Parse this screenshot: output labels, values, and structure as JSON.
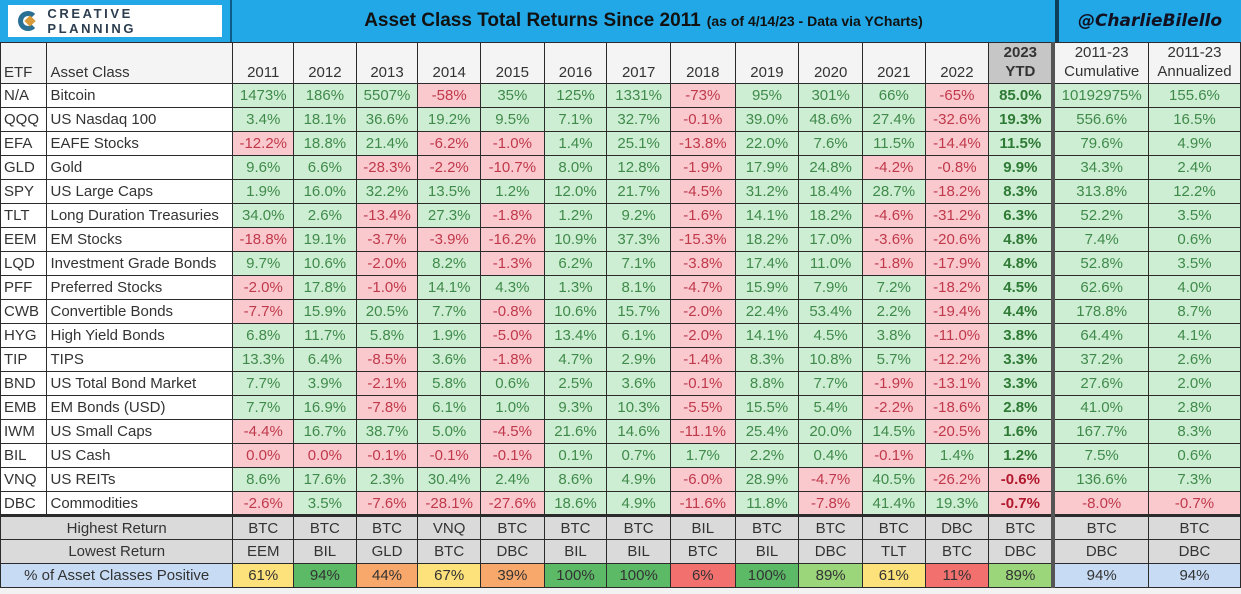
{
  "header": {
    "logo_text": "CREATIVE PLANNING",
    "title": "Asset Class Total Returns Since 2011",
    "subtitle": "(as of 4/14/23 - Data via YCharts)",
    "handle": "@CharlieBilello"
  },
  "columns": {
    "etf": "ETF",
    "asset_class": "Asset Class",
    "years": [
      "2011",
      "2012",
      "2013",
      "2014",
      "2015",
      "2016",
      "2017",
      "2018",
      "2019",
      "2020",
      "2021",
      "2022"
    ],
    "ytd_line1": "2023",
    "ytd_line2": "YTD",
    "cum_line1": "2011-23",
    "cum_line2": "Cumulative",
    "ann_line1": "2011-23",
    "ann_line2": "Annualized"
  },
  "colors": {
    "banner_blue": "#22a8e6",
    "positive_bg": "#cdeed3",
    "positive_text": "#3f8a4a",
    "negative_bg": "#f9c9ce",
    "negative_text": "#c0394a",
    "pct_green_dark": "#5cba67",
    "pct_green_light": "#9bd67a",
    "pct_yellow": "#fde17a",
    "pct_orange": "#f8a86a",
    "pct_red": "#f2716f",
    "pct_blue": "#c7dcf4"
  },
  "rows": [
    {
      "etf": "N/A",
      "name": "Bitcoin",
      "values": [
        "1473%",
        "186%",
        "5507%",
        "-58%",
        "35%",
        "125%",
        "1331%",
        "-73%",
        "95%",
        "301%",
        "66%",
        "-65%"
      ],
      "ytd": "85.0%",
      "cum": "10192975%",
      "ann": "155.6%"
    },
    {
      "etf": "QQQ",
      "name": "US Nasdaq 100",
      "values": [
        "3.4%",
        "18.1%",
        "36.6%",
        "19.2%",
        "9.5%",
        "7.1%",
        "32.7%",
        "-0.1%",
        "39.0%",
        "48.6%",
        "27.4%",
        "-32.6%"
      ],
      "ytd": "19.3%",
      "cum": "556.6%",
      "ann": "16.5%"
    },
    {
      "etf": "EFA",
      "name": "EAFE Stocks",
      "values": [
        "-12.2%",
        "18.8%",
        "21.4%",
        "-6.2%",
        "-1.0%",
        "1.4%",
        "25.1%",
        "-13.8%",
        "22.0%",
        "7.6%",
        "11.5%",
        "-14.4%"
      ],
      "ytd": "11.5%",
      "cum": "79.6%",
      "ann": "4.9%"
    },
    {
      "etf": "GLD",
      "name": "Gold",
      "values": [
        "9.6%",
        "6.6%",
        "-28.3%",
        "-2.2%",
        "-10.7%",
        "8.0%",
        "12.8%",
        "-1.9%",
        "17.9%",
        "24.8%",
        "-4.2%",
        "-0.8%"
      ],
      "ytd": "9.9%",
      "cum": "34.3%",
      "ann": "2.4%"
    },
    {
      "etf": "SPY",
      "name": "US Large Caps",
      "values": [
        "1.9%",
        "16.0%",
        "32.2%",
        "13.5%",
        "1.2%",
        "12.0%",
        "21.7%",
        "-4.5%",
        "31.2%",
        "18.4%",
        "28.7%",
        "-18.2%"
      ],
      "ytd": "8.3%",
      "cum": "313.8%",
      "ann": "12.2%"
    },
    {
      "etf": "TLT",
      "name": "Long Duration Treasuries",
      "values": [
        "34.0%",
        "2.6%",
        "-13.4%",
        "27.3%",
        "-1.8%",
        "1.2%",
        "9.2%",
        "-1.6%",
        "14.1%",
        "18.2%",
        "-4.6%",
        "-31.2%"
      ],
      "ytd": "6.3%",
      "cum": "52.2%",
      "ann": "3.5%"
    },
    {
      "etf": "EEM",
      "name": "EM Stocks",
      "values": [
        "-18.8%",
        "19.1%",
        "-3.7%",
        "-3.9%",
        "-16.2%",
        "10.9%",
        "37.3%",
        "-15.3%",
        "18.2%",
        "17.0%",
        "-3.6%",
        "-20.6%"
      ],
      "ytd": "4.8%",
      "cum": "7.4%",
      "ann": "0.6%"
    },
    {
      "etf": "LQD",
      "name": "Investment Grade Bonds",
      "values": [
        "9.7%",
        "10.6%",
        "-2.0%",
        "8.2%",
        "-1.3%",
        "6.2%",
        "7.1%",
        "-3.8%",
        "17.4%",
        "11.0%",
        "-1.8%",
        "-17.9%"
      ],
      "ytd": "4.8%",
      "cum": "52.8%",
      "ann": "3.5%"
    },
    {
      "etf": "PFF",
      "name": "Preferred Stocks",
      "values": [
        "-2.0%",
        "17.8%",
        "-1.0%",
        "14.1%",
        "4.3%",
        "1.3%",
        "8.1%",
        "-4.7%",
        "15.9%",
        "7.9%",
        "7.2%",
        "-18.2%"
      ],
      "ytd": "4.5%",
      "cum": "62.6%",
      "ann": "4.0%"
    },
    {
      "etf": "CWB",
      "name": "Convertible Bonds",
      "values": [
        "-7.7%",
        "15.9%",
        "20.5%",
        "7.7%",
        "-0.8%",
        "10.6%",
        "15.7%",
        "-2.0%",
        "22.4%",
        "53.4%",
        "2.2%",
        "-19.4%"
      ],
      "ytd": "4.4%",
      "cum": "178.8%",
      "ann": "8.7%"
    },
    {
      "etf": "HYG",
      "name": "High Yield Bonds",
      "values": [
        "6.8%",
        "11.7%",
        "5.8%",
        "1.9%",
        "-5.0%",
        "13.4%",
        "6.1%",
        "-2.0%",
        "14.1%",
        "4.5%",
        "3.8%",
        "-11.0%"
      ],
      "ytd": "3.8%",
      "cum": "64.4%",
      "ann": "4.1%"
    },
    {
      "etf": "TIP",
      "name": "TIPS",
      "values": [
        "13.3%",
        "6.4%",
        "-8.5%",
        "3.6%",
        "-1.8%",
        "4.7%",
        "2.9%",
        "-1.4%",
        "8.3%",
        "10.8%",
        "5.7%",
        "-12.2%"
      ],
      "ytd": "3.3%",
      "cum": "37.2%",
      "ann": "2.6%"
    },
    {
      "etf": "BND",
      "name": "US Total Bond Market",
      "values": [
        "7.7%",
        "3.9%",
        "-2.1%",
        "5.8%",
        "0.6%",
        "2.5%",
        "3.6%",
        "-0.1%",
        "8.8%",
        "7.7%",
        "-1.9%",
        "-13.1%"
      ],
      "ytd": "3.3%",
      "cum": "27.6%",
      "ann": "2.0%"
    },
    {
      "etf": "EMB",
      "name": "EM Bonds (USD)",
      "values": [
        "7.7%",
        "16.9%",
        "-7.8%",
        "6.1%",
        "1.0%",
        "9.3%",
        "10.3%",
        "-5.5%",
        "15.5%",
        "5.4%",
        "-2.2%",
        "-18.6%"
      ],
      "ytd": "2.8%",
      "cum": "41.0%",
      "ann": "2.8%"
    },
    {
      "etf": "IWM",
      "name": "US Small Caps",
      "values": [
        "-4.4%",
        "16.7%",
        "38.7%",
        "5.0%",
        "-4.5%",
        "21.6%",
        "14.6%",
        "-11.1%",
        "25.4%",
        "20.0%",
        "14.5%",
        "-20.5%"
      ],
      "ytd": "1.6%",
      "cum": "167.7%",
      "ann": "8.3%"
    },
    {
      "etf": "BIL",
      "name": "US Cash",
      "values": [
        "0.0%",
        "0.0%",
        "-0.1%",
        "-0.1%",
        "-0.1%",
        "0.1%",
        "0.7%",
        "1.7%",
        "2.2%",
        "0.4%",
        "-0.1%",
        "1.4%"
      ],
      "ytd": "1.2%",
      "cum": "7.5%",
      "ann": "0.6%"
    },
    {
      "etf": "VNQ",
      "name": "US REITs",
      "values": [
        "8.6%",
        "17.6%",
        "2.3%",
        "30.4%",
        "2.4%",
        "8.6%",
        "4.9%",
        "-6.0%",
        "28.9%",
        "-4.7%",
        "40.5%",
        "-26.2%"
      ],
      "ytd": "-0.6%",
      "cum": "136.6%",
      "ann": "7.3%"
    },
    {
      "etf": "DBC",
      "name": "Commodities",
      "values": [
        "-2.6%",
        "3.5%",
        "-7.6%",
        "-28.1%",
        "-27.6%",
        "18.6%",
        "4.9%",
        "-11.6%",
        "11.8%",
        "-7.8%",
        "41.4%",
        "19.3%"
      ],
      "ytd": "-0.7%",
      "cum": "-8.0%",
      "ann": "-0.7%"
    }
  ],
  "summary": {
    "highest": {
      "label": "Highest Return",
      "values": [
        "BTC",
        "BTC",
        "BTC",
        "VNQ",
        "BTC",
        "BTC",
        "BTC",
        "BIL",
        "BTC",
        "BTC",
        "BTC",
        "DBC",
        "BTC",
        "BTC",
        "BTC"
      ]
    },
    "lowest": {
      "label": "Lowest Return",
      "values": [
        "EEM",
        "BIL",
        "GLD",
        "BTC",
        "DBC",
        "BIL",
        "BIL",
        "BTC",
        "BIL",
        "DBC",
        "TLT",
        "BTC",
        "DBC",
        "DBC",
        "DBC"
      ]
    },
    "positive": {
      "label": "% of Asset Classes Positive",
      "values": [
        "61%",
        "94%",
        "44%",
        "67%",
        "39%",
        "100%",
        "100%",
        "6%",
        "100%",
        "89%",
        "61%",
        "11%",
        "89%",
        "94%",
        "94%"
      ],
      "colors": [
        "#fde17a",
        "#5cba67",
        "#f8a86a",
        "#fde17a",
        "#f8a86a",
        "#5cba67",
        "#5cba67",
        "#f2716f",
        "#5cba67",
        "#9bd67a",
        "#fde17a",
        "#f2716f",
        "#9bd67a",
        "#c7dcf4",
        "#c7dcf4"
      ]
    }
  },
  "chart_data": {
    "type": "table",
    "title": "Asset Class Total Returns Since 2011 (as of 4/14/23 - Data via YCharts)",
    "columns": [
      "ETF",
      "Asset Class",
      "2011",
      "2012",
      "2013",
      "2014",
      "2015",
      "2016",
      "2017",
      "2018",
      "2019",
      "2020",
      "2021",
      "2022",
      "2023 YTD",
      "2011-23 Cumulative",
      "2011-23 Annualized"
    ],
    "rows": [
      [
        "N/A",
        "Bitcoin",
        "1473%",
        "186%",
        "5507%",
        "-58%",
        "35%",
        "125%",
        "1331%",
        "-73%",
        "95%",
        "301%",
        "66%",
        "-65%",
        "85.0%",
        "10192975%",
        "155.6%"
      ],
      [
        "QQQ",
        "US Nasdaq 100",
        "3.4%",
        "18.1%",
        "36.6%",
        "19.2%",
        "9.5%",
        "7.1%",
        "32.7%",
        "-0.1%",
        "39.0%",
        "48.6%",
        "27.4%",
        "-32.6%",
        "19.3%",
        "556.6%",
        "16.5%"
      ],
      [
        "EFA",
        "EAFE Stocks",
        "-12.2%",
        "18.8%",
        "21.4%",
        "-6.2%",
        "-1.0%",
        "1.4%",
        "25.1%",
        "-13.8%",
        "22.0%",
        "7.6%",
        "11.5%",
        "-14.4%",
        "11.5%",
        "79.6%",
        "4.9%"
      ],
      [
        "GLD",
        "Gold",
        "9.6%",
        "6.6%",
        "-28.3%",
        "-2.2%",
        "-10.7%",
        "8.0%",
        "12.8%",
        "-1.9%",
        "17.9%",
        "24.8%",
        "-4.2%",
        "-0.8%",
        "9.9%",
        "34.3%",
        "2.4%"
      ],
      [
        "SPY",
        "US Large Caps",
        "1.9%",
        "16.0%",
        "32.2%",
        "13.5%",
        "1.2%",
        "12.0%",
        "21.7%",
        "-4.5%",
        "31.2%",
        "18.4%",
        "28.7%",
        "-18.2%",
        "8.3%",
        "313.8%",
        "12.2%"
      ],
      [
        "TLT",
        "Long Duration Treasuries",
        "34.0%",
        "2.6%",
        "-13.4%",
        "27.3%",
        "-1.8%",
        "1.2%",
        "9.2%",
        "-1.6%",
        "14.1%",
        "18.2%",
        "-4.6%",
        "-31.2%",
        "6.3%",
        "52.2%",
        "3.5%"
      ],
      [
        "EEM",
        "EM Stocks",
        "-18.8%",
        "19.1%",
        "-3.7%",
        "-3.9%",
        "-16.2%",
        "10.9%",
        "37.3%",
        "-15.3%",
        "18.2%",
        "17.0%",
        "-3.6%",
        "-20.6%",
        "4.8%",
        "7.4%",
        "0.6%"
      ],
      [
        "LQD",
        "Investment Grade Bonds",
        "9.7%",
        "10.6%",
        "-2.0%",
        "8.2%",
        "-1.3%",
        "6.2%",
        "7.1%",
        "-3.8%",
        "17.4%",
        "11.0%",
        "-1.8%",
        "-17.9%",
        "4.8%",
        "52.8%",
        "3.5%"
      ],
      [
        "PFF",
        "Preferred Stocks",
        "-2.0%",
        "17.8%",
        "-1.0%",
        "14.1%",
        "4.3%",
        "1.3%",
        "8.1%",
        "-4.7%",
        "15.9%",
        "7.9%",
        "7.2%",
        "-18.2%",
        "4.5%",
        "62.6%",
        "4.0%"
      ],
      [
        "CWB",
        "Convertible Bonds",
        "-7.7%",
        "15.9%",
        "20.5%",
        "7.7%",
        "-0.8%",
        "10.6%",
        "15.7%",
        "-2.0%",
        "22.4%",
        "53.4%",
        "2.2%",
        "-19.4%",
        "4.4%",
        "178.8%",
        "8.7%"
      ],
      [
        "HYG",
        "High Yield Bonds",
        "6.8%",
        "11.7%",
        "5.8%",
        "1.9%",
        "-5.0%",
        "13.4%",
        "6.1%",
        "-2.0%",
        "14.1%",
        "4.5%",
        "3.8%",
        "-11.0%",
        "3.8%",
        "64.4%",
        "4.1%"
      ],
      [
        "TIP",
        "TIPS",
        "13.3%",
        "6.4%",
        "-8.5%",
        "3.6%",
        "-1.8%",
        "4.7%",
        "2.9%",
        "-1.4%",
        "8.3%",
        "10.8%",
        "5.7%",
        "-12.2%",
        "3.3%",
        "37.2%",
        "2.6%"
      ],
      [
        "BND",
        "US Total Bond Market",
        "7.7%",
        "3.9%",
        "-2.1%",
        "5.8%",
        "0.6%",
        "2.5%",
        "3.6%",
        "-0.1%",
        "8.8%",
        "7.7%",
        "-1.9%",
        "-13.1%",
        "3.3%",
        "27.6%",
        "2.0%"
      ],
      [
        "EMB",
        "EM Bonds (USD)",
        "7.7%",
        "16.9%",
        "-7.8%",
        "6.1%",
        "1.0%",
        "9.3%",
        "10.3%",
        "-5.5%",
        "15.5%",
        "5.4%",
        "-2.2%",
        "-18.6%",
        "2.8%",
        "41.0%",
        "2.8%"
      ],
      [
        "IWM",
        "US Small Caps",
        "-4.4%",
        "16.7%",
        "38.7%",
        "5.0%",
        "-4.5%",
        "21.6%",
        "14.6%",
        "-11.1%",
        "25.4%",
        "20.0%",
        "14.5%",
        "-20.5%",
        "1.6%",
        "167.7%",
        "8.3%"
      ],
      [
        "BIL",
        "US Cash",
        "0.0%",
        "0.0%",
        "-0.1%",
        "-0.1%",
        "-0.1%",
        "0.1%",
        "0.7%",
        "1.7%",
        "2.2%",
        "0.4%",
        "-0.1%",
        "1.4%",
        "1.2%",
        "7.5%",
        "0.6%"
      ],
      [
        "VNQ",
        "US REITs",
        "8.6%",
        "17.6%",
        "2.3%",
        "30.4%",
        "2.4%",
        "8.6%",
        "4.9%",
        "-6.0%",
        "28.9%",
        "-4.7%",
        "40.5%",
        "-26.2%",
        "-0.6%",
        "136.6%",
        "7.3%"
      ],
      [
        "DBC",
        "Commodities",
        "-2.6%",
        "3.5%",
        "-7.6%",
        "-28.1%",
        "-27.6%",
        "18.6%",
        "4.9%",
        "-11.6%",
        "11.8%",
        "-7.8%",
        "41.4%",
        "19.3%",
        "-0.7%",
        "-8.0%",
        "-0.7%"
      ]
    ],
    "summary_rows": [
      [
        "Highest Return",
        "BTC",
        "BTC",
        "BTC",
        "VNQ",
        "BTC",
        "BTC",
        "BTC",
        "BIL",
        "BTC",
        "BTC",
        "BTC",
        "DBC",
        "BTC",
        "BTC",
        "BTC"
      ],
      [
        "Lowest Return",
        "EEM",
        "BIL",
        "GLD",
        "BTC",
        "DBC",
        "BIL",
        "BIL",
        "BTC",
        "BIL",
        "DBC",
        "TLT",
        "BTC",
        "DBC",
        "DBC",
        "DBC"
      ],
      [
        "% of Asset Classes Positive",
        "61%",
        "94%",
        "44%",
        "67%",
        "39%",
        "100%",
        "100%",
        "6%",
        "100%",
        "89%",
        "61%",
        "11%",
        "89%",
        "94%",
        "94%"
      ]
    ]
  }
}
